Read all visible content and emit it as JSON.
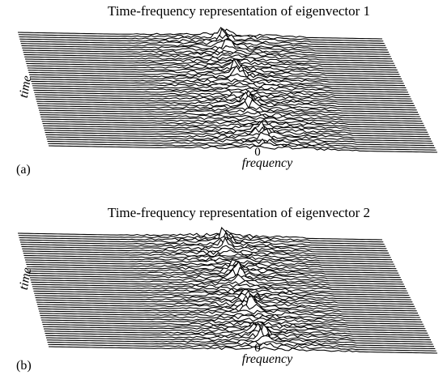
{
  "panels": [
    {
      "title": "Time-frequency representation of eigenvector 1",
      "ylabel": "time",
      "xlabel": "frequency",
      "xtick": "0",
      "tag": "(a)"
    },
    {
      "title": "Time-frequency representation of eigenvector 2",
      "ylabel": "time",
      "xlabel": "frequency",
      "xtick": "0",
      "tag": "(b)"
    }
  ]
}
